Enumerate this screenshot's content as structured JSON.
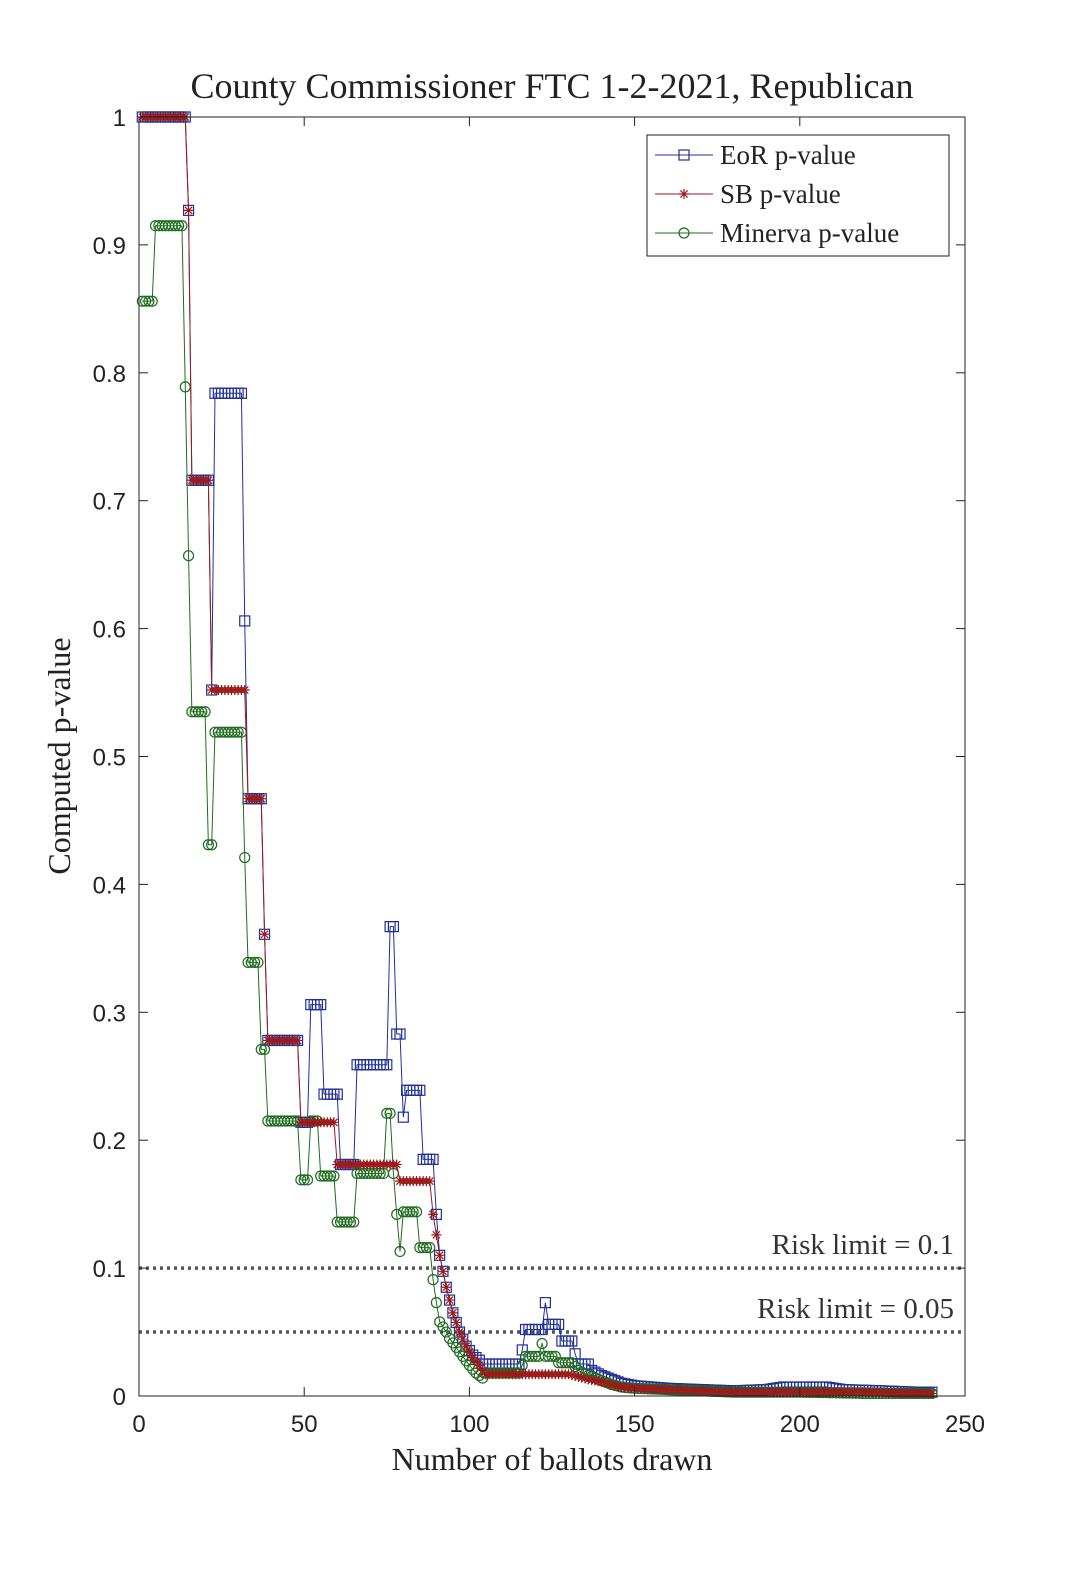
{
  "chart_data": {
    "type": "line",
    "title": "County Commissioner FTC 1-2-2021, Republican",
    "xlabel": "Number of ballots drawn",
    "ylabel": "Computed p-value",
    "xlim": [
      0,
      250
    ],
    "ylim": [
      0,
      1
    ],
    "xticks": [
      "0",
      "50",
      "100",
      "150",
      "200",
      "250"
    ],
    "yticks": [
      "0",
      "0.1",
      "0.2",
      "0.3",
      "0.4",
      "0.5",
      "0.6",
      "0.7",
      "0.8",
      "0.9",
      "1"
    ],
    "grid": false,
    "legend_position": "top-right",
    "annotations": [
      {
        "text": "Risk limit = 0.1",
        "y": 0.1
      },
      {
        "text": "Risk limit = 0.05",
        "y": 0.05
      }
    ],
    "series": [
      {
        "name": "EoR p-value",
        "color": "#1f2f9a",
        "marker": "square",
        "points": [
          [
            1,
            1
          ],
          [
            14,
            1
          ],
          [
            15,
            0.927
          ],
          [
            16,
            0.716
          ],
          [
            21,
            0.716
          ],
          [
            22,
            0.552
          ],
          [
            23,
            0.784
          ],
          [
            31,
            0.784
          ],
          [
            32,
            0.606
          ],
          [
            33,
            0.467
          ],
          [
            37,
            0.467
          ],
          [
            38,
            0.361
          ],
          [
            39,
            0.278
          ],
          [
            48,
            0.278
          ],
          [
            49,
            0.214
          ],
          [
            51,
            0.214
          ],
          [
            52,
            0.306
          ],
          [
            55,
            0.306
          ],
          [
            56,
            0.236
          ],
          [
            60,
            0.236
          ],
          [
            61,
            0.181
          ],
          [
            65,
            0.181
          ],
          [
            66,
            0.259
          ],
          [
            75,
            0.259
          ],
          [
            76,
            0.367
          ],
          [
            77,
            0.367
          ],
          [
            78,
            0.283
          ],
          [
            79,
            0.283
          ],
          [
            80,
            0.218
          ],
          [
            81,
            0.239
          ],
          [
            85,
            0.239
          ],
          [
            86,
            0.185
          ],
          [
            89,
            0.185
          ],
          [
            90,
            0.142
          ],
          [
            91,
            0.11
          ],
          [
            93,
            0.085
          ],
          [
            95,
            0.065
          ],
          [
            97,
            0.05
          ],
          [
            99,
            0.039
          ],
          [
            101,
            0.032
          ],
          [
            103,
            0.028
          ],
          [
            104,
            0.025
          ],
          [
            115,
            0.025
          ],
          [
            116,
            0.036
          ],
          [
            117,
            0.052
          ],
          [
            122,
            0.052
          ],
          [
            123,
            0.073
          ],
          [
            124,
            0.056
          ],
          [
            127,
            0.056
          ],
          [
            128,
            0.043
          ],
          [
            131,
            0.043
          ],
          [
            132,
            0.033
          ],
          [
            133,
            0.025
          ],
          [
            136,
            0.025
          ],
          [
            137,
            0.02
          ],
          [
            140,
            0.016
          ],
          [
            143,
            0.013
          ],
          [
            146,
            0.01
          ],
          [
            150,
            0.008
          ],
          [
            155,
            0.007
          ],
          [
            160,
            0.006
          ],
          [
            170,
            0.005
          ],
          [
            180,
            0.004
          ],
          [
            190,
            0.005
          ],
          [
            195,
            0.007
          ],
          [
            208,
            0.007
          ],
          [
            213,
            0.005
          ],
          [
            225,
            0.004
          ],
          [
            235,
            0.003
          ],
          [
            240,
            0.003
          ]
        ]
      },
      {
        "name": "SB p-value",
        "color": "#9b1b1b",
        "marker": "asterisk",
        "points": [
          [
            1,
            1
          ],
          [
            14,
            1
          ],
          [
            15,
            0.927
          ],
          [
            16,
            0.716
          ],
          [
            21,
            0.716
          ],
          [
            22,
            0.552
          ],
          [
            32,
            0.552
          ],
          [
            33,
            0.467
          ],
          [
            37,
            0.467
          ],
          [
            38,
            0.361
          ],
          [
            39,
            0.278
          ],
          [
            48,
            0.278
          ],
          [
            49,
            0.214
          ],
          [
            59,
            0.214
          ],
          [
            60,
            0.181
          ],
          [
            77,
            0.181
          ],
          [
            78,
            0.181
          ],
          [
            79,
            0.168
          ],
          [
            88,
            0.168
          ],
          [
            89,
            0.142
          ],
          [
            91,
            0.11
          ],
          [
            93,
            0.085
          ],
          [
            95,
            0.065
          ],
          [
            97,
            0.05
          ],
          [
            99,
            0.039
          ],
          [
            101,
            0.03
          ],
          [
            103,
            0.024
          ],
          [
            104,
            0.02
          ],
          [
            105,
            0.017
          ],
          [
            115,
            0.017
          ],
          [
            116,
            0.017
          ],
          [
            130,
            0.017
          ],
          [
            133,
            0.015
          ],
          [
            136,
            0.013
          ],
          [
            140,
            0.011
          ],
          [
            143,
            0.009
          ],
          [
            146,
            0.007
          ],
          [
            150,
            0.006
          ],
          [
            160,
            0.005
          ],
          [
            170,
            0.004
          ],
          [
            180,
            0.003
          ],
          [
            200,
            0.003
          ],
          [
            220,
            0.003
          ],
          [
            240,
            0.002
          ]
        ]
      },
      {
        "name": "Minerva p-value",
        "color": "#1f6b1f",
        "marker": "circle",
        "points": [
          [
            1,
            0.856
          ],
          [
            4,
            0.856
          ],
          [
            5,
            0.915
          ],
          [
            13,
            0.915
          ],
          [
            14,
            0.789
          ],
          [
            15,
            0.657
          ],
          [
            16,
            0.535
          ],
          [
            20,
            0.535
          ],
          [
            21,
            0.431
          ],
          [
            22,
            0.431
          ],
          [
            23,
            0.519
          ],
          [
            31,
            0.519
          ],
          [
            32,
            0.421
          ],
          [
            33,
            0.339
          ],
          [
            36,
            0.339
          ],
          [
            37,
            0.271
          ],
          [
            38,
            0.271
          ],
          [
            39,
            0.215
          ],
          [
            48,
            0.215
          ],
          [
            49,
            0.169
          ],
          [
            51,
            0.169
          ],
          [
            52,
            0.215
          ],
          [
            54,
            0.215
          ],
          [
            55,
            0.172
          ],
          [
            59,
            0.172
          ],
          [
            60,
            0.136
          ],
          [
            65,
            0.136
          ],
          [
            66,
            0.174
          ],
          [
            74,
            0.174
          ],
          [
            75,
            0.221
          ],
          [
            76,
            0.221
          ],
          [
            77,
            0.174
          ],
          [
            78,
            0.142
          ],
          [
            79,
            0.113
          ],
          [
            80,
            0.144
          ],
          [
            84,
            0.144
          ],
          [
            85,
            0.116
          ],
          [
            88,
            0.116
          ],
          [
            89,
            0.091
          ],
          [
            90,
            0.073
          ],
          [
            91,
            0.058
          ],
          [
            93,
            0.05
          ],
          [
            94,
            0.045
          ],
          [
            96,
            0.038
          ],
          [
            98,
            0.031
          ],
          [
            100,
            0.024
          ],
          [
            102,
            0.018
          ],
          [
            104,
            0.014
          ],
          [
            105,
            0.018
          ],
          [
            115,
            0.018
          ],
          [
            116,
            0.024
          ],
          [
            117,
            0.031
          ],
          [
            121,
            0.031
          ],
          [
            122,
            0.041
          ],
          [
            123,
            0.031
          ],
          [
            126,
            0.031
          ],
          [
            127,
            0.026
          ],
          [
            131,
            0.026
          ],
          [
            133,
            0.02
          ],
          [
            136,
            0.016
          ],
          [
            140,
            0.012
          ],
          [
            143,
            0.009
          ],
          [
            146,
            0.007
          ],
          [
            150,
            0.006
          ],
          [
            160,
            0.005
          ],
          [
            170,
            0.004
          ],
          [
            180,
            0.003
          ],
          [
            200,
            0.003
          ],
          [
            220,
            0.002
          ],
          [
            240,
            0.002
          ]
        ]
      }
    ]
  }
}
